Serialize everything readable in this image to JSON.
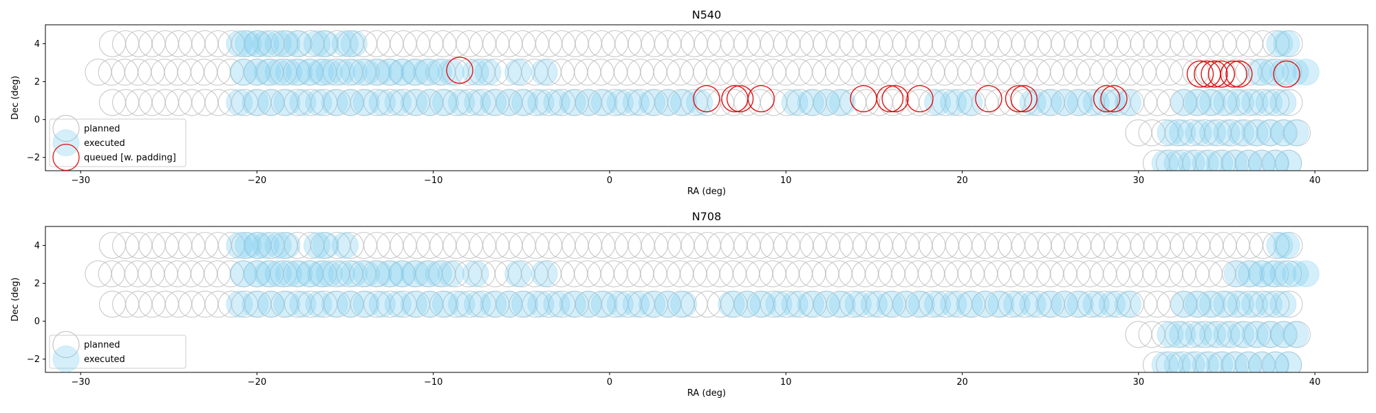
{
  "chart_data": [
    {
      "type": "scatter",
      "title": "N540",
      "xlabel": "RA (deg)",
      "ylabel": "Dec (deg)",
      "xlim": [
        -32,
        43
      ],
      "ylim": [
        -2.7,
        5.0
      ],
      "xticks": [
        -30,
        -20,
        -10,
        0,
        10,
        20,
        30,
        40
      ],
      "xtick_labels": [
        "−30",
        "−20",
        "−10",
        "0",
        "10",
        "20",
        "30",
        "40"
      ],
      "yticks": [
        -2,
        0,
        2,
        4
      ],
      "ytick_labels": [
        "−2",
        "0",
        "2",
        "4"
      ],
      "legend_position": "lower-left",
      "grid": false,
      "series": [
        {
          "name": "planned",
          "color": "#c8c8c8",
          "style": "open-circle",
          "rows": [
            {
              "dec": 4.0,
              "ra_start": -28.2,
              "ra_end": 38.6,
              "step": 0.75
            },
            {
              "dec": 2.5,
              "ra_start": -29.0,
              "ra_end": 39.2,
              "step": 0.75
            },
            {
              "dec": 0.9,
              "ra_start": -28.2,
              "ra_end": 38.6,
              "step": 0.75
            },
            {
              "dec": -0.7,
              "ra_start": 30.0,
              "ra_end": 39.2,
              "step": 0.75
            },
            {
              "dec": -2.3,
              "ra_start": 31.0,
              "ra_end": 39.2,
              "step": 0.75
            }
          ]
        },
        {
          "name": "executed",
          "color": "#7ccdf0",
          "style": "filled-circle",
          "rows": [
            {
              "dec": 4.0,
              "ra": [
                -21.0,
                -20.5,
                -20.0,
                -19.5,
                -18.8,
                -18.3,
                -17.6,
                -16.6,
                -16.1,
                -15.0,
                -14.5,
                38.0,
                38.4
              ]
            },
            {
              "dec": 2.5,
              "ra": [
                -20.8,
                -20.0,
                -19.4,
                -18.8,
                -18.2,
                -17.6,
                -17.0,
                -16.4,
                -15.9,
                -15.2,
                -14.5,
                -13.8,
                -13.1,
                -12.4,
                -11.8,
                -11.1,
                -10.4,
                -9.7,
                -9.0,
                -7.6,
                -6.9,
                -5.2,
                -3.7,
                36.8,
                37.5,
                38.2,
                38.9,
                39.5
              ]
            },
            {
              "dec": 0.9,
              "ra_start": -21.0,
              "ra_end": 29.8,
              "step": 0.9,
              "gaps": [
                [
                  5.2,
                  9.8
                ],
                [
                  13.8,
                  18.0
                ],
                [
                  21.0,
                  23.8
                ]
              ]
            },
            {
              "dec": 0.9,
              "ra": [
                32.6,
                33.4,
                34.2,
                35.0,
                35.8,
                36.6,
                37.4,
                38.2
              ]
            },
            {
              "dec": -0.7,
              "ra": [
                31.8,
                32.5,
                33.4,
                34.2,
                35.0,
                35.8,
                36.6,
                37.4,
                38.2,
                38.9
              ]
            },
            {
              "dec": -2.3,
              "ra": [
                31.5,
                32.2,
                33.0,
                33.8,
                34.6,
                35.4,
                36.2,
                37.0,
                37.8,
                38.5
              ]
            }
          ]
        },
        {
          "name": "queued [w. padding]",
          "color": "#e01010",
          "style": "open-circle",
          "rows": [
            {
              "dec": 2.6,
              "ra": [
                -8.5
              ]
            },
            {
              "dec": 1.1,
              "ra": [
                5.5,
                7.1,
                7.4,
                8.6,
                14.4,
                15.9,
                16.2,
                17.6,
                21.5,
                23.2,
                23.5,
                28.2,
                28.6
              ]
            },
            {
              "dec": 2.4,
              "ra": [
                33.5,
                33.9,
                34.3,
                34.7,
                35.4,
                35.7,
                38.4
              ]
            }
          ]
        }
      ]
    },
    {
      "type": "scatter",
      "title": "N708",
      "xlabel": "RA (deg)",
      "ylabel": "Dec (deg)",
      "xlim": [
        -32,
        43
      ],
      "ylim": [
        -2.7,
        5.0
      ],
      "xticks": [
        -30,
        -20,
        -10,
        0,
        10,
        20,
        30,
        40
      ],
      "xtick_labels": [
        "−30",
        "−20",
        "−10",
        "0",
        "10",
        "20",
        "30",
        "40"
      ],
      "yticks": [
        -2,
        0,
        2,
        4
      ],
      "ytick_labels": [
        "−2",
        "0",
        "2",
        "4"
      ],
      "legend_position": "lower-left",
      "grid": false,
      "series": [
        {
          "name": "planned",
          "color": "#c8c8c8",
          "style": "open-circle",
          "rows": [
            {
              "dec": 4.0,
              "ra_start": -28.2,
              "ra_end": 38.6,
              "step": 0.75
            },
            {
              "dec": 2.5,
              "ra_start": -29.0,
              "ra_end": 39.2,
              "step": 0.75
            },
            {
              "dec": 0.9,
              "ra_start": -28.2,
              "ra_end": 38.6,
              "step": 0.75
            },
            {
              "dec": -0.7,
              "ra_start": 30.0,
              "ra_end": 39.2,
              "step": 0.75
            },
            {
              "dec": -2.3,
              "ra_start": 31.0,
              "ra_end": 39.2,
              "step": 0.75
            }
          ]
        },
        {
          "name": "executed",
          "color": "#7ccdf0",
          "style": "filled-circle",
          "rows": [
            {
              "dec": 4.0,
              "ra": [
                -21.0,
                -20.5,
                -20.0,
                -19.5,
                -18.8,
                -18.3,
                -16.6,
                -16.1,
                -15.0,
                38.0,
                38.4
              ]
            },
            {
              "dec": 2.5,
              "ra": [
                -20.8,
                -20.0,
                -19.4,
                -18.8,
                -18.2,
                -17.6,
                -17.0,
                -16.4,
                -15.9,
                -15.2,
                -14.5,
                -13.8,
                -13.1,
                -12.4,
                -11.8,
                -11.1,
                -10.4,
                -9.7,
                -9.0,
                -7.6,
                -5.2,
                -3.7,
                35.6,
                36.4,
                37.0,
                37.6,
                38.2,
                38.9,
                39.5
              ]
            },
            {
              "dec": 0.9,
              "ra_start": -21.0,
              "ra_end": 30.0,
              "step": 0.9,
              "gaps": [
                [
                  5.0,
                  6.6
                ]
              ]
            },
            {
              "dec": 0.9,
              "ra": [
                32.6,
                33.4,
                34.2,
                35.0,
                35.8,
                36.6,
                37.4,
                38.2
              ]
            },
            {
              "dec": -0.7,
              "ra": [
                31.8,
                32.5,
                33.4,
                34.2,
                35.0,
                35.8,
                36.6,
                37.4,
                38.2,
                38.9
              ]
            },
            {
              "dec": -2.3,
              "ra": [
                31.5,
                32.2,
                33.0,
                33.8,
                34.6,
                35.4,
                36.2,
                37.0,
                37.8,
                38.5
              ]
            }
          ]
        }
      ]
    }
  ]
}
